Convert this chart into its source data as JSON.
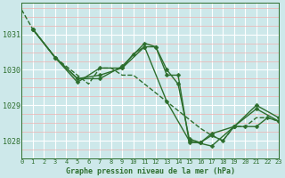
{
  "title": "Graphe pression niveau de la mer (hPa)",
  "bg_color": "#cde8ea",
  "plot_bg_color": "#cde8ea",
  "grid_major_color": "#ffffff",
  "grid_minor_color": "#f0b0b0",
  "line_color": "#2d6e2d",
  "x_ticks": [
    0,
    1,
    2,
    3,
    4,
    5,
    6,
    7,
    8,
    9,
    10,
    11,
    12,
    13,
    14,
    15,
    16,
    17,
    18,
    19,
    20,
    21,
    22,
    23
  ],
  "y_ticks": [
    1028,
    1029,
    1030,
    1031
  ],
  "ylim": [
    1027.5,
    1031.9
  ],
  "xlim": [
    0,
    23
  ],
  "series": [
    {
      "x": [
        0,
        1,
        2,
        3,
        4,
        5,
        6,
        7,
        8,
        9,
        10,
        11,
        12,
        13,
        14,
        15,
        16,
        17,
        18,
        19,
        20,
        21,
        22,
        23
      ],
      "y": [
        1031.7,
        1031.15,
        1030.75,
        1030.35,
        1030.1,
        1029.85,
        1029.6,
        1030.05,
        1030.05,
        1029.85,
        1029.85,
        1029.6,
        1029.35,
        1029.1,
        1028.85,
        1028.6,
        1028.35,
        1028.15,
        1028.0,
        1028.4,
        1028.4,
        1028.65,
        1028.65,
        1028.55
      ],
      "style": "dashed",
      "marker": false,
      "lw": 1.0
    },
    {
      "x": [
        1,
        3,
        5,
        7,
        9,
        11,
        13,
        15,
        17,
        19,
        21,
        23
      ],
      "y": [
        1031.15,
        1030.35,
        1029.65,
        1030.05,
        1030.05,
        1030.65,
        1029.1,
        1028.0,
        1027.85,
        1028.4,
        1028.9,
        1028.55
      ],
      "style": "solid",
      "marker": true,
      "lw": 1.0
    },
    {
      "x": [
        1,
        3,
        5,
        7,
        9,
        10,
        11,
        12,
        13,
        14,
        15,
        16,
        17,
        18,
        19,
        20,
        21,
        22,
        23
      ],
      "y": [
        1031.15,
        1030.35,
        1029.75,
        1029.85,
        1030.05,
        1030.45,
        1030.65,
        1030.65,
        1029.85,
        1029.85,
        1027.95,
        1027.95,
        1028.15,
        1028.0,
        1028.4,
        1028.4,
        1028.4,
        1028.65,
        1028.55
      ],
      "style": "solid",
      "marker": true,
      "lw": 1.0
    },
    {
      "x": [
        1,
        3,
        5,
        7,
        9,
        11,
        12,
        13,
        14,
        15,
        16,
        17,
        19,
        21,
        23
      ],
      "y": [
        1031.15,
        1030.35,
        1029.75,
        1029.75,
        1030.1,
        1030.75,
        1030.65,
        1030.0,
        1029.6,
        1028.05,
        1027.95,
        1028.2,
        1028.4,
        1029.0,
        1028.65
      ],
      "style": "solid",
      "marker": true,
      "lw": 1.0
    }
  ]
}
